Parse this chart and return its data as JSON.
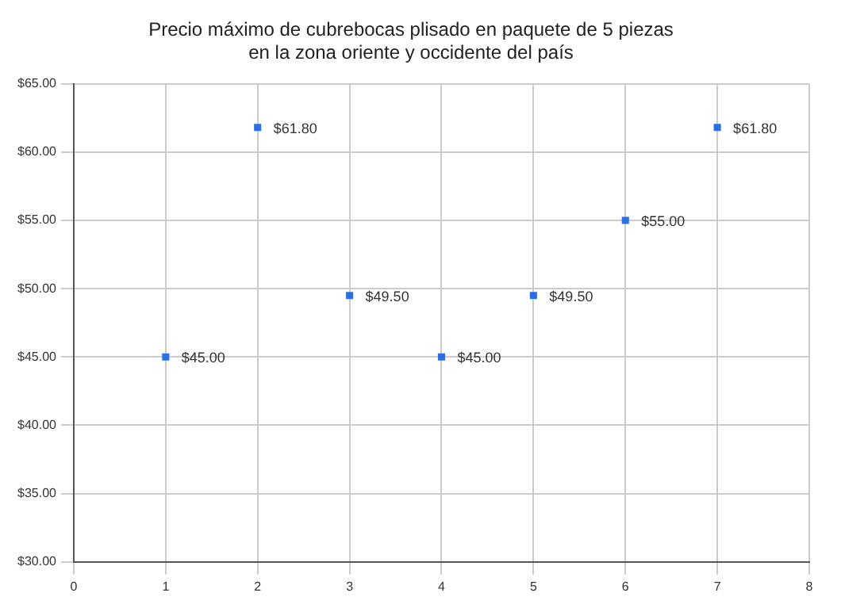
{
  "chart_data": {
    "type": "scatter",
    "title": "Precio máximo de cubrebocas plisado en paquete de 5 piezas\nen la zona oriente y occidente del país",
    "x": [
      1,
      2,
      3,
      4,
      5,
      6,
      7
    ],
    "series": [
      {
        "color": "#2e6fe0",
        "values": [
          45,
          61.8,
          49.5,
          45,
          49.5,
          55,
          61.8
        ],
        "value_labels": [
          "$45.00",
          "$61.80",
          "$49.50",
          "$45.00",
          "$49.50",
          "$55.00",
          "$61.80"
        ]
      }
    ],
    "xlim": [
      0,
      8
    ],
    "xticks": [
      0,
      1,
      2,
      3,
      4,
      5,
      6,
      7,
      8
    ],
    "ylim": [
      30,
      65
    ],
    "yticks": [
      {
        "value": 30,
        "label": "$30.00"
      },
      {
        "value": 35,
        "label": "$35.00"
      },
      {
        "value": 40,
        "label": "$40.00"
      },
      {
        "value": 45,
        "label": "$45.00"
      },
      {
        "value": 50,
        "label": "$50.00"
      },
      {
        "value": 55,
        "label": "$55.00"
      },
      {
        "value": 60,
        "label": "$60.00"
      },
      {
        "value": 65,
        "label": "$65.00"
      }
    ],
    "grid": true,
    "legend": false,
    "marker": "square"
  }
}
